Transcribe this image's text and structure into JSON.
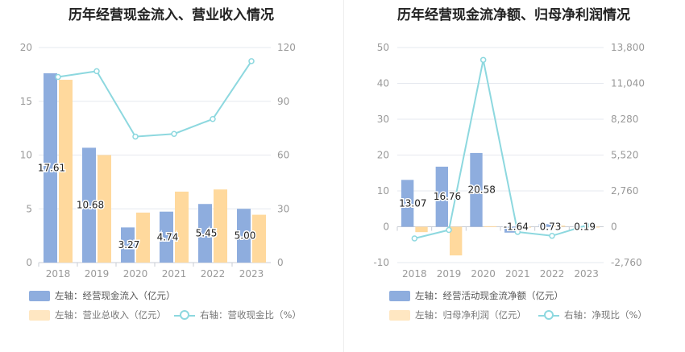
{
  "charts": [
    {
      "title": "历年经营现金流入、营业收入情况",
      "legend": {
        "s1": "左轴：经营现金流入（亿元）",
        "s2": "左轴：营业总收入（亿元）",
        "s3": "右轴：营收现金比（%）"
      }
    },
    {
      "title": "历年经营现金流净额、归母净利润情况",
      "legend": {
        "s1": "左轴：经营活动现金流净额（亿元）",
        "s2": "左轴：归母净利润（亿元）",
        "s3": "右轴：净现比（%）"
      }
    }
  ],
  "colors": {
    "bar1": "#8eadde",
    "bar2": "#ffd99d",
    "line": "#8dd8df",
    "grid": "#e6e9ef",
    "axis": "#999999"
  },
  "chart_data": [
    {
      "type": "bar+line",
      "title": "历年经营现金流入、营业收入情况",
      "categories": [
        "2018",
        "2019",
        "2020",
        "2021",
        "2022",
        "2023"
      ],
      "left_axis": {
        "ticks": [
          "0",
          "5",
          "10",
          "15",
          "20"
        ],
        "range": [
          0,
          20
        ]
      },
      "right_axis": {
        "ticks": [
          "0",
          "30",
          "60",
          "90",
          "120"
        ],
        "range": [
          0,
          120
        ]
      },
      "series": [
        {
          "name": "左轴：经营现金流入（亿元）",
          "type": "bar",
          "axis": "left",
          "values": [
            17.61,
            10.68,
            3.27,
            4.74,
            5.45,
            5.0
          ],
          "labels": [
            "17.61",
            "10.68",
            "3.27",
            "4.74",
            "5.45",
            "5.00"
          ]
        },
        {
          "name": "左轴：营业总收入（亿元）",
          "type": "bar",
          "axis": "left",
          "values": [
            17.0,
            10.0,
            4.65,
            6.6,
            6.8,
            4.45
          ]
        },
        {
          "name": "右轴：营收现金比（%）",
          "type": "line",
          "axis": "right",
          "values": [
            103.6,
            106.8,
            70.3,
            71.8,
            80.1,
            112.4
          ]
        }
      ]
    },
    {
      "type": "bar+line",
      "title": "历年经营现金流净额、归母净利润情况",
      "categories": [
        "2018",
        "2019",
        "2020",
        "2021",
        "2022",
        "2023"
      ],
      "left_axis": {
        "ticks": [
          "-10",
          "0",
          "10",
          "20",
          "30",
          "40",
          "50"
        ],
        "range": [
          -10,
          50
        ]
      },
      "right_axis": {
        "ticks": [
          "-2,760",
          "0",
          "2,760",
          "5,520",
          "8,280",
          "11,040",
          "13,800"
        ],
        "range": [
          -2760,
          13800
        ]
      },
      "series": [
        {
          "name": "左轴：经营活动现金流净额（亿元）",
          "type": "bar",
          "axis": "left",
          "values": [
            13.07,
            16.76,
            20.58,
            -1.64,
            0.73,
            0.19
          ],
          "labels": [
            "13.07",
            "16.76",
            "20.58",
            "-1.64",
            "0.73",
            "0.19"
          ]
        },
        {
          "name": "左轴：归母净利润（亿元）",
          "type": "bar",
          "axis": "left",
          "values": [
            -1.5,
            -8.0,
            0.15,
            -0.3,
            0.3,
            -0.05
          ]
        },
        {
          "name": "右轴：净现比（%）",
          "type": "line",
          "axis": "right",
          "values": [
            -900,
            -250,
            12850,
            -400,
            -700,
            100
          ]
        }
      ]
    }
  ]
}
